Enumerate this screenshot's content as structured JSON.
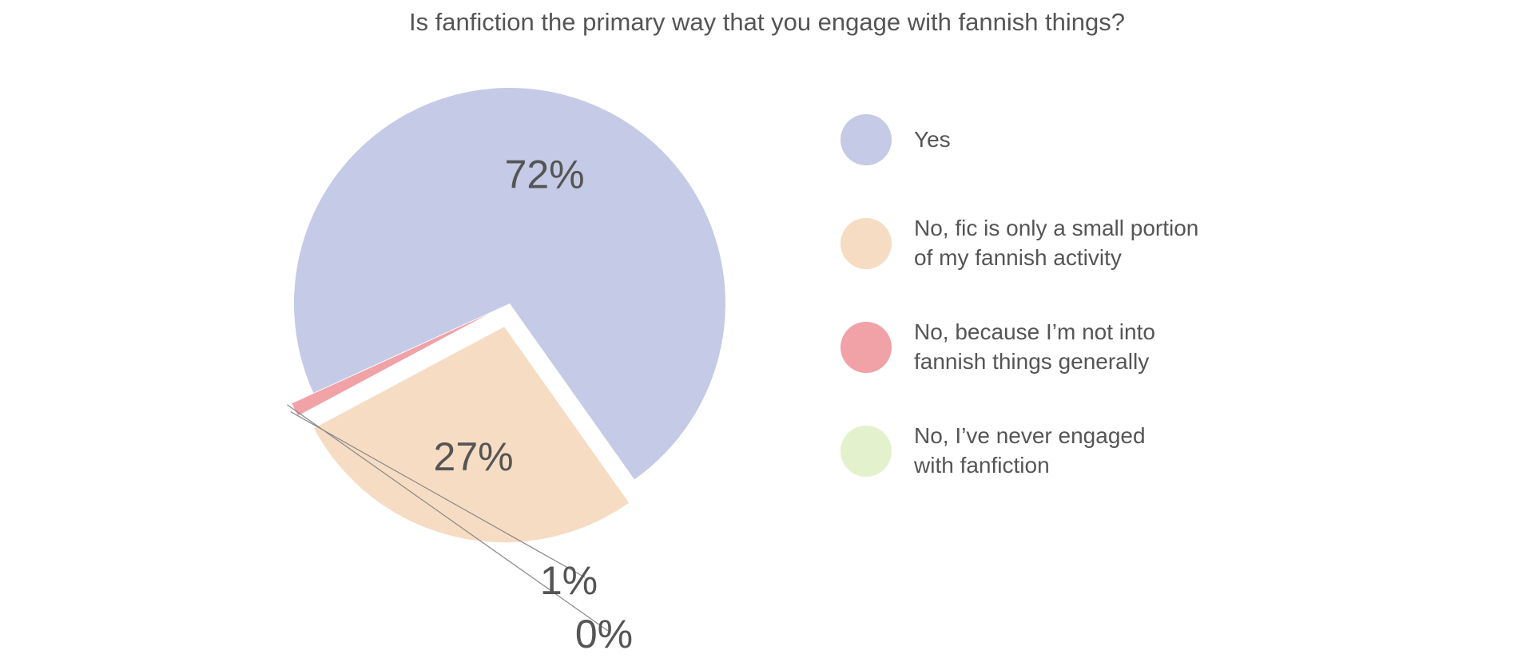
{
  "chart_data": {
    "type": "pie",
    "title": "Is fanfiction the primary way that you engage with fannish things?",
    "legend_position": "right",
    "slices": [
      {
        "name": "Yes",
        "value": 72,
        "label": "72%",
        "color": "#c5cae6"
      },
      {
        "name": "No, fic is only a small portion of my fannish activity",
        "value": 27,
        "label": "27%",
        "color": "#f7dcc4"
      },
      {
        "name": "No, because I’m not into fannish things generally",
        "value": 1,
        "label": "1%",
        "color": "#f0a2a6"
      },
      {
        "name": "No, I’ve never engaged with fanfiction",
        "value": 0,
        "label": "0%",
        "color": "#e3f1cd"
      }
    ]
  },
  "legend": {
    "items": [
      {
        "line1": "Yes",
        "line2": ""
      },
      {
        "line1": "No, fic is only a small portion",
        "line2": "of my fannish activity"
      },
      {
        "line1": "No, because I’m not into",
        "line2": "fannish things generally"
      },
      {
        "line1": "No, I’ve never engaged",
        "line2": "with fanfiction"
      }
    ]
  }
}
